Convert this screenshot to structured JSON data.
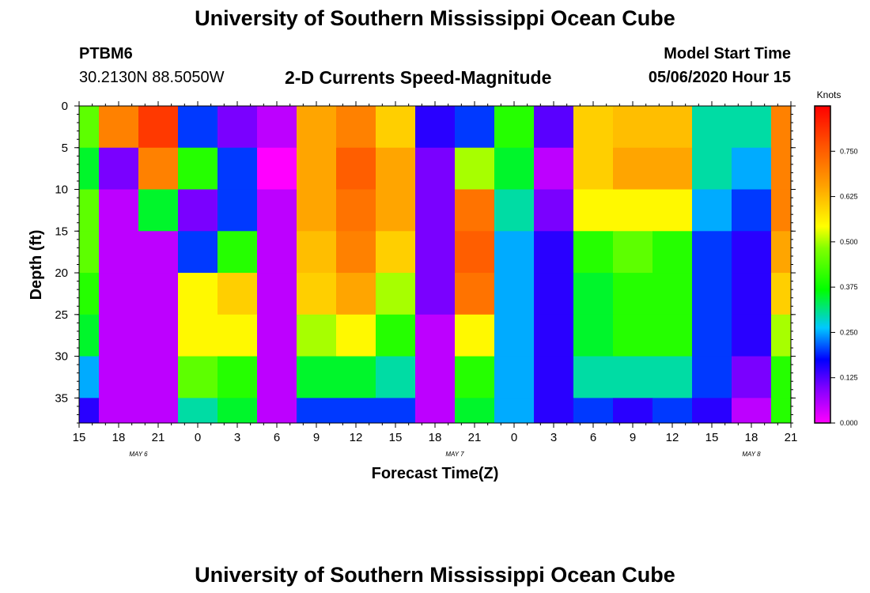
{
  "page": {
    "title": "University of Southern Mississippi Ocean Cube",
    "footer_title": "University of Southern Mississippi Ocean Cube"
  },
  "header": {
    "station": "PTBM6",
    "location": "30.2130N 88.5050W",
    "plot_title": "2-D Currents Speed-Magnitude",
    "model_start_label": "Model Start Time",
    "model_start_value": "05/06/2020 Hour 15"
  },
  "chart_data": {
    "type": "heatmap",
    "title": "2-D Currents Speed-Magnitude",
    "xlabel": "Forecast Time(Z)",
    "ylabel": "Depth (ft)",
    "x_tick_labels": [
      "15",
      "18",
      "21",
      "0",
      "3",
      "6",
      "9",
      "12",
      "15",
      "18",
      "21",
      "0",
      "3",
      "6",
      "9",
      "12",
      "15",
      "18",
      "21"
    ],
    "date_labels": [
      "MAY 6",
      "MAY 7",
      "MAY 8"
    ],
    "y_ticks": [
      0,
      5,
      10,
      15,
      20,
      25,
      30,
      35
    ],
    "ylim": [
      0,
      38
    ],
    "y_inverted": true,
    "colorbar": {
      "title": "Knots",
      "ticks": [
        "0.000",
        "0.125",
        "0.250",
        "0.375",
        "0.500",
        "0.625",
        "0.750"
      ],
      "range": [
        0,
        0.875
      ]
    },
    "depth_bins": [
      0,
      5,
      10,
      15,
      20,
      25,
      30,
      35
    ],
    "time_steps": [
      "05-06 15Z",
      "05-06 18Z",
      "05-06 21Z",
      "05-07 00Z",
      "05-07 03Z",
      "05-07 06Z",
      "05-07 09Z",
      "05-07 12Z",
      "05-07 15Z",
      "05-07 18Z",
      "05-07 21Z",
      "05-08 00Z",
      "05-08 03Z",
      "05-08 06Z",
      "05-08 09Z",
      "05-08 12Z",
      "05-08 15Z",
      "05-08 18Z",
      "05-08 21Z"
    ],
    "speed_knots_approx": [
      [
        0.45,
        0.7,
        0.8,
        0.2,
        0.1,
        0.05,
        0.65,
        0.7,
        0.6,
        0.15,
        0.2,
        0.4,
        0.12,
        0.6,
        0.62,
        0.62,
        0.3,
        0.3,
        0.7
      ],
      [
        0.35,
        0.1,
        0.7,
        0.4,
        0.2,
        0.0,
        0.65,
        0.75,
        0.65,
        0.1,
        0.5,
        0.35,
        0.05,
        0.6,
        0.65,
        0.65,
        0.3,
        0.25,
        0.7
      ],
      [
        0.45,
        0.05,
        0.35,
        0.1,
        0.2,
        0.05,
        0.65,
        0.72,
        0.65,
        0.1,
        0.72,
        0.3,
        0.1,
        0.55,
        0.55,
        0.55,
        0.25,
        0.2,
        0.7
      ],
      [
        0.45,
        0.05,
        0.05,
        0.2,
        0.4,
        0.05,
        0.62,
        0.7,
        0.6,
        0.1,
        0.75,
        0.25,
        0.15,
        0.4,
        0.45,
        0.4,
        0.2,
        0.15,
        0.65
      ],
      [
        0.4,
        0.05,
        0.05,
        0.55,
        0.6,
        0.05,
        0.6,
        0.65,
        0.5,
        0.1,
        0.72,
        0.25,
        0.15,
        0.35,
        0.4,
        0.4,
        0.2,
        0.15,
        0.6
      ],
      [
        0.35,
        0.05,
        0.05,
        0.55,
        0.55,
        0.05,
        0.5,
        0.55,
        0.4,
        0.05,
        0.55,
        0.25,
        0.15,
        0.35,
        0.4,
        0.4,
        0.2,
        0.15,
        0.5
      ],
      [
        0.25,
        0.05,
        0.05,
        0.45,
        0.4,
        0.05,
        0.35,
        0.35,
        0.3,
        0.05,
        0.4,
        0.25,
        0.15,
        0.3,
        0.3,
        0.3,
        0.2,
        0.1,
        0.4
      ],
      [
        0.15,
        0.05,
        0.05,
        0.3,
        0.35,
        0.05,
        0.2,
        0.2,
        0.2,
        0.05,
        0.35,
        0.25,
        0.15,
        0.2,
        0.15,
        0.2,
        0.15,
        0.05,
        0.4
      ]
    ]
  }
}
